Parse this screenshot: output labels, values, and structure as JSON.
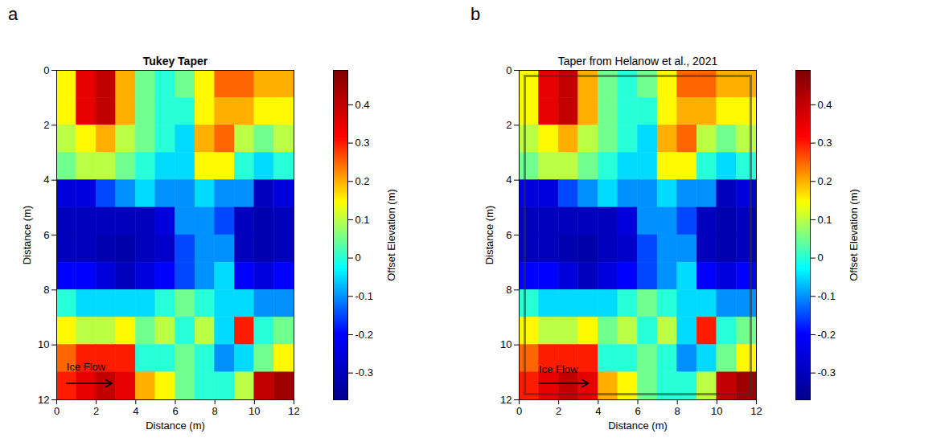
{
  "chart_data": [
    {
      "type": "heatmap",
      "panel": "a",
      "title": "Tukey Taper",
      "x_label": "Distance (m)",
      "y_label": "Distance (m)",
      "xlim": [
        0,
        12
      ],
      "ylim": [
        12,
        0
      ],
      "xticks": [
        0,
        2,
        4,
        6,
        8,
        10,
        12
      ],
      "yticks": [
        0,
        2,
        4,
        6,
        8,
        10,
        12
      ],
      "cells": [
        [
          0.15,
          0.35,
          0.4,
          0.2,
          0.05,
          0.0,
          0.05,
          0.15,
          0.25,
          0.25,
          0.2,
          0.2
        ],
        [
          0.15,
          0.35,
          0.4,
          0.2,
          0.05,
          0.0,
          0.0,
          0.15,
          0.2,
          0.2,
          0.15,
          0.15
        ],
        [
          0.1,
          0.15,
          0.2,
          0.1,
          0.05,
          0.0,
          -0.05,
          0.2,
          0.25,
          0.1,
          0.05,
          0.1
        ],
        [
          0.05,
          0.1,
          0.1,
          0.05,
          0.0,
          -0.05,
          -0.05,
          0.15,
          0.15,
          0.0,
          -0.05,
          0.0
        ],
        [
          -0.25,
          -0.25,
          -0.15,
          -0.1,
          -0.05,
          -0.1,
          -0.1,
          -0.05,
          -0.1,
          -0.1,
          -0.3,
          -0.25
        ],
        [
          -0.3,
          -0.3,
          -0.3,
          -0.3,
          -0.3,
          -0.25,
          -0.1,
          -0.1,
          -0.15,
          -0.3,
          -0.32,
          -0.3
        ],
        [
          -0.3,
          -0.3,
          -0.32,
          -0.33,
          -0.3,
          -0.28,
          -0.15,
          -0.1,
          -0.1,
          -0.3,
          -0.32,
          -0.3
        ],
        [
          -0.2,
          -0.2,
          -0.25,
          -0.3,
          -0.25,
          -0.2,
          -0.15,
          -0.1,
          -0.05,
          -0.2,
          -0.25,
          -0.2
        ],
        [
          0.0,
          -0.05,
          -0.05,
          -0.05,
          -0.05,
          0.0,
          0.05,
          0.0,
          -0.05,
          -0.05,
          -0.1,
          -0.1
        ],
        [
          0.15,
          0.1,
          0.1,
          0.15,
          0.05,
          0.1,
          0.0,
          0.1,
          -0.05,
          0.3,
          0.0,
          0.05
        ],
        [
          0.25,
          0.3,
          0.3,
          0.3,
          0.0,
          0.0,
          0.05,
          0.0,
          -0.1,
          -0.05,
          0.05,
          0.15
        ],
        [
          0.3,
          0.35,
          0.4,
          0.35,
          0.2,
          0.15,
          0.05,
          0.0,
          0.0,
          0.1,
          0.4,
          0.45
        ]
      ],
      "colorbar": {
        "label": "Offset Elevation (m)",
        "range": [
          -0.37,
          0.49
        ],
        "ticks": [
          -0.3,
          -0.2,
          -0.1,
          0,
          0.1,
          0.2,
          0.3,
          0.4
        ]
      },
      "annotations": [
        {
          "text": "Ice Flow",
          "x": 0.5,
          "y": 10.8,
          "arrow": {
            "x1": 0.5,
            "y1": 11.4,
            "x2": 2.8,
            "y2": 11.4
          }
        }
      ]
    },
    {
      "type": "heatmap",
      "panel": "b",
      "title": "Taper from Helanow et al., 2021",
      "x_label": "Distance (m)",
      "y_label": "Distance (m)",
      "xlim": [
        0,
        12
      ],
      "ylim": [
        12,
        0
      ],
      "xticks": [
        0,
        2,
        4,
        6,
        8,
        10,
        12
      ],
      "yticks": [
        0,
        2,
        4,
        6,
        8,
        10,
        12
      ],
      "cells": [
        [
          0.15,
          0.35,
          0.4,
          0.2,
          0.05,
          0.0,
          0.05,
          0.15,
          0.25,
          0.25,
          0.2,
          0.2
        ],
        [
          0.15,
          0.35,
          0.4,
          0.2,
          0.05,
          0.0,
          0.0,
          0.15,
          0.2,
          0.2,
          0.15,
          0.15
        ],
        [
          0.1,
          0.15,
          0.2,
          0.1,
          0.05,
          0.0,
          -0.05,
          0.2,
          0.25,
          0.1,
          0.05,
          0.1
        ],
        [
          0.05,
          0.1,
          0.1,
          0.05,
          0.0,
          -0.05,
          -0.05,
          0.15,
          0.15,
          0.0,
          -0.05,
          0.0
        ],
        [
          -0.25,
          -0.25,
          -0.15,
          -0.1,
          -0.05,
          -0.1,
          -0.1,
          -0.05,
          -0.1,
          -0.1,
          -0.3,
          -0.25
        ],
        [
          -0.3,
          -0.3,
          -0.3,
          -0.3,
          -0.3,
          -0.25,
          -0.1,
          -0.1,
          -0.15,
          -0.3,
          -0.32,
          -0.3
        ],
        [
          -0.3,
          -0.3,
          -0.32,
          -0.33,
          -0.3,
          -0.28,
          -0.15,
          -0.1,
          -0.1,
          -0.3,
          -0.32,
          -0.3
        ],
        [
          -0.2,
          -0.2,
          -0.25,
          -0.3,
          -0.25,
          -0.2,
          -0.15,
          -0.1,
          -0.05,
          -0.2,
          -0.25,
          -0.2
        ],
        [
          0.0,
          -0.05,
          -0.05,
          -0.05,
          -0.05,
          0.0,
          0.05,
          0.0,
          -0.05,
          -0.05,
          -0.1,
          -0.1
        ],
        [
          0.15,
          0.1,
          0.1,
          0.15,
          0.05,
          0.1,
          0.0,
          0.1,
          -0.05,
          0.3,
          0.0,
          0.05
        ],
        [
          0.25,
          0.3,
          0.3,
          0.3,
          0.0,
          0.0,
          0.05,
          0.0,
          -0.1,
          -0.05,
          0.05,
          0.15
        ],
        [
          0.3,
          0.35,
          0.4,
          0.35,
          0.2,
          0.15,
          0.05,
          0.0,
          0.0,
          0.1,
          0.4,
          0.45
        ]
      ],
      "colorbar": {
        "label": "Offset Elevation (m)",
        "range": [
          -0.37,
          0.49
        ],
        "ticks": [
          -0.3,
          -0.2,
          -0.1,
          0,
          0.1,
          0.2,
          0.3,
          0.4
        ]
      },
      "annotations": [
        {
          "text": "Ice Flow",
          "x": 1,
          "y": 10.9,
          "arrow": {
            "x1": 1,
            "y1": 11.4,
            "x2": 3.5,
            "y2": 11.4
          }
        }
      ]
    }
  ]
}
